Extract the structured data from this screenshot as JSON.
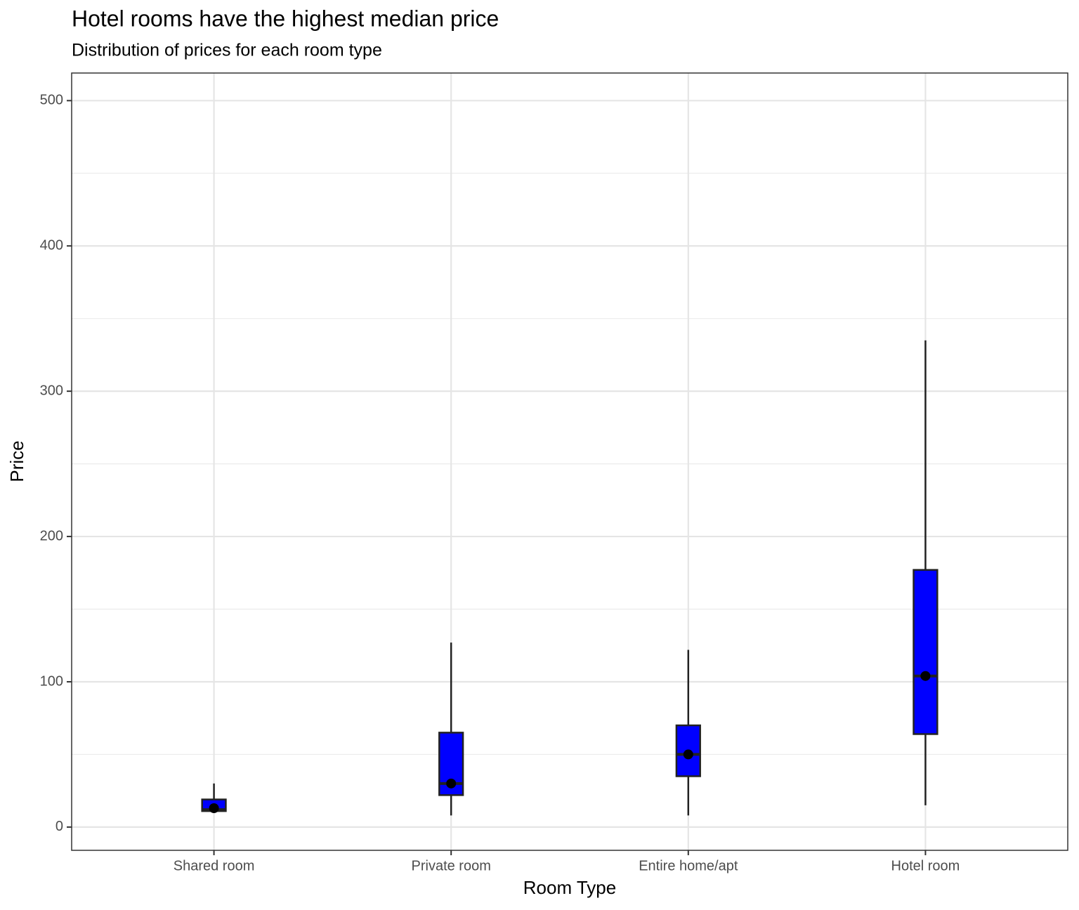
{
  "chart_data": {
    "type": "box",
    "title": "Hotel rooms have the highest median price",
    "subtitle": "Distribution of prices for each room type",
    "x_label": "Room Type",
    "y_label": "Price",
    "categories": [
      "Shared room",
      "Private room",
      "Entire home/apt",
      "Hotel room"
    ],
    "min": [
      10,
      8,
      8,
      15
    ],
    "q1": [
      11,
      22,
      35,
      64
    ],
    "median": [
      12,
      30,
      50,
      104
    ],
    "q3": [
      19,
      65,
      70,
      177
    ],
    "max": [
      30,
      127,
      122,
      335
    ],
    "points": [
      13,
      30,
      50,
      104
    ],
    "color": "#0000ff",
    "ylim": [
      -16,
      519
    ],
    "yticks": [
      0,
      100,
      200,
      300,
      400,
      500
    ],
    "grid": true
  }
}
